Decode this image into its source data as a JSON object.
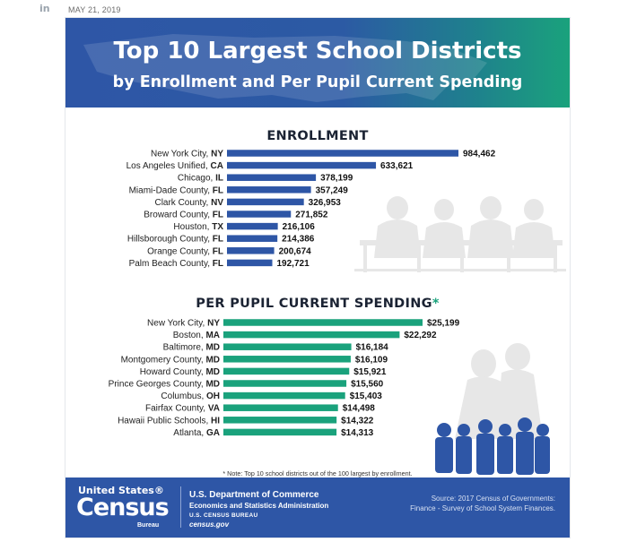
{
  "post": {
    "platform_icon": "in",
    "date": "MAY 21, 2019"
  },
  "infographic": {
    "title_line1": "Top 10 Largest School Districts",
    "title_line2": "by Enrollment and Per Pupil Current Spending",
    "colors": {
      "enrollment_bar": "#2e56a6",
      "spending_bar": "#1aa27c",
      "header_blue": "#2e56a6",
      "header_green": "#1aa27c",
      "footer": "#2e56a6"
    },
    "note": "* Note: Top 10 school districts out of the 100 largest by enrollment.",
    "footer": {
      "logo_line1": "United States",
      "logo_reg": "®",
      "logo_line2": "Census",
      "logo_line3": "Bureau",
      "dept_line1": "U.S. Department of Commerce",
      "dept_line2": "Economics and Statistics Administration",
      "dept_line3": "U.S. CENSUS BUREAU",
      "dept_line4": "census.gov",
      "source_line1": "Source: 2017 Census of Governments:",
      "source_line2": "Finance - Survey of School System Finances."
    }
  },
  "chart_data": [
    {
      "type": "bar",
      "orientation": "horizontal",
      "title": "ENROLLMENT",
      "categories": [
        {
          "name": "New York City,",
          "state": "NY"
        },
        {
          "name": "Los Angeles Unified,",
          "state": "CA"
        },
        {
          "name": "Chicago,",
          "state": "IL"
        },
        {
          "name": "Miami-Dade County,",
          "state": "FL"
        },
        {
          "name": "Clark County,",
          "state": "NV"
        },
        {
          "name": "Broward County,",
          "state": "FL"
        },
        {
          "name": "Houston,",
          "state": "TX"
        },
        {
          "name": "Hillsborough County,",
          "state": "FL"
        },
        {
          "name": "Orange County,",
          "state": "FL"
        },
        {
          "name": "Palm Beach County,",
          "state": "FL"
        }
      ],
      "values": [
        984462,
        633621,
        378199,
        357249,
        326953,
        271852,
        216106,
        214386,
        200674,
        192721
      ],
      "value_labels": [
        "984,462",
        "633,621",
        "378,199",
        "357,249",
        "326,953",
        "271,852",
        "216,106",
        "214,386",
        "200,674",
        "192,721"
      ],
      "xlim": [
        0,
        984462
      ],
      "grid": false,
      "legend": "none"
    },
    {
      "type": "bar",
      "orientation": "horizontal",
      "title": "PER PUPIL CURRENT SPENDING",
      "title_marker": "*",
      "categories": [
        {
          "name": "New York City,",
          "state": "NY"
        },
        {
          "name": "Boston,",
          "state": "MA"
        },
        {
          "name": "Baltimore,",
          "state": "MD"
        },
        {
          "name": "Montgomery County,",
          "state": "MD"
        },
        {
          "name": "Howard County,",
          "state": "MD"
        },
        {
          "name": "Prince Georges County,",
          "state": "MD"
        },
        {
          "name": "Columbus,",
          "state": "OH"
        },
        {
          "name": "Fairfax County,",
          "state": "VA"
        },
        {
          "name": "Hawaii Public Schools,",
          "state": "HI"
        },
        {
          "name": "Atlanta,",
          "state": "GA"
        }
      ],
      "values": [
        25199,
        22292,
        16184,
        16109,
        15921,
        15560,
        15403,
        14498,
        14322,
        14313
      ],
      "value_labels": [
        "$25,199",
        "$22,292",
        "$16,184",
        "$16,109",
        "$15,921",
        "$15,560",
        "$15,403",
        "$14,498",
        "$14,322",
        "$14,313"
      ],
      "xlim": [
        0,
        25199
      ],
      "grid": false,
      "legend": "none"
    }
  ]
}
